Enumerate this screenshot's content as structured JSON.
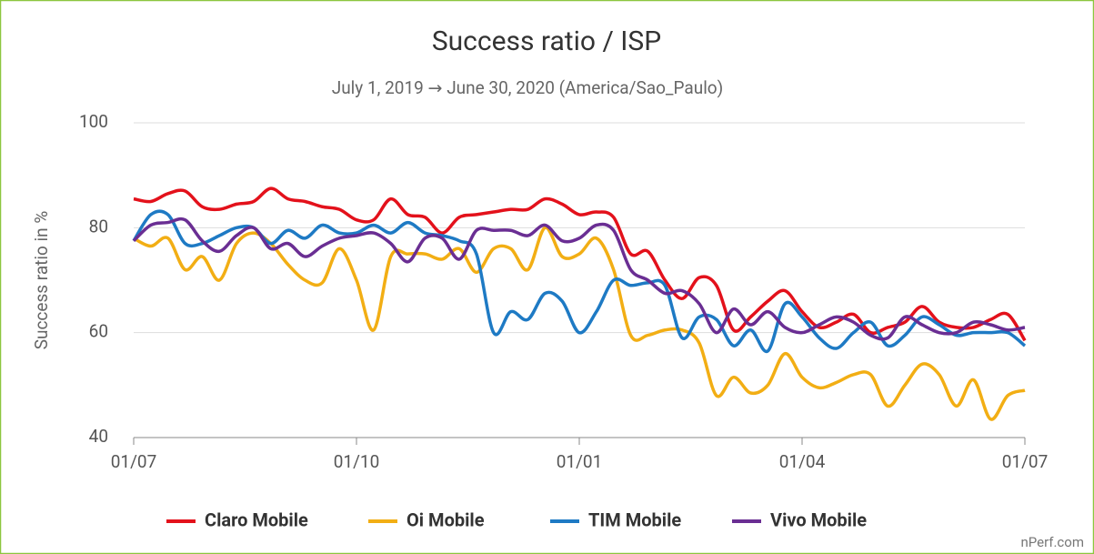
{
  "chart_data": {
    "type": "line",
    "title": "Success ratio / ISP",
    "subtitle": "July 1, 2019 → June 30, 2020 (America/Sao_Paulo)",
    "y_label": "Success ratio in %",
    "source": "nPerf.com",
    "categories": [
      "01/07",
      null,
      null,
      null,
      null,
      null,
      null,
      null,
      null,
      null,
      null,
      null,
      null,
      "01/10",
      null,
      null,
      null,
      null,
      null,
      null,
      null,
      null,
      null,
      null,
      null,
      null,
      "01/01",
      null,
      null,
      null,
      null,
      null,
      null,
      null,
      null,
      null,
      null,
      null,
      null,
      "01/04",
      null,
      null,
      null,
      null,
      null,
      null,
      null,
      null,
      null,
      null,
      null,
      null,
      "01/07"
    ],
    "ylim": [
      40,
      100
    ],
    "yticks": [
      40,
      60,
      80,
      100
    ],
    "grid": true,
    "legend": "bottom",
    "series": [
      {
        "name": "Claro Mobile",
        "color": "#e3111b",
        "values": [
          85.5,
          85,
          86.5,
          87,
          84,
          83.5,
          84.5,
          85,
          87.5,
          85.5,
          85,
          84,
          83.5,
          81.5,
          81.5,
          85.5,
          82.5,
          82,
          79,
          82,
          82.5,
          83,
          83.5,
          83.5,
          85.5,
          84.5,
          82.5,
          83,
          82,
          75,
          75.5,
          70,
          66.5,
          70.5,
          69,
          60.5,
          63,
          66,
          68,
          64,
          61,
          62,
          63.5,
          60,
          61,
          62,
          65,
          62,
          61,
          61,
          62.5,
          63.5,
          58.5
        ]
      },
      {
        "name": "Oi Mobile",
        "color": "#f2ae14",
        "values": [
          78,
          76.5,
          78,
          72,
          74.5,
          70,
          77,
          79,
          77,
          73,
          70,
          69.5,
          76,
          70,
          60.5,
          74.5,
          75,
          75,
          74,
          76,
          71.5,
          76,
          76,
          72,
          80,
          74.5,
          75,
          78,
          72,
          59.5,
          59.5,
          60.5,
          60.5,
          58,
          48,
          51.5,
          48.5,
          50,
          56,
          51.5,
          49.5,
          50.5,
          52,
          52,
          46,
          50,
          54,
          52,
          46,
          51,
          43.5,
          48,
          49
        ]
      },
      {
        "name": "TIM Mobile",
        "color": "#1e7ac4",
        "values": [
          77.5,
          82.5,
          82.5,
          77,
          77,
          78.5,
          80,
          80,
          77,
          79.5,
          78,
          80.5,
          79,
          79,
          80.5,
          79,
          81,
          79,
          78.5,
          77.5,
          75,
          60,
          64,
          62.5,
          67.5,
          66,
          60,
          64,
          70,
          69,
          69.5,
          69,
          59,
          63,
          62.5,
          57.5,
          60.5,
          56.5,
          65.5,
          63,
          59,
          57,
          60,
          62,
          57.5,
          59.5,
          63,
          61.5,
          59.5,
          60,
          60,
          60,
          57.5
        ]
      },
      {
        "name": "Vivo Mobile",
        "color": "#6a2e93",
        "values": [
          77.5,
          80.5,
          81,
          81.5,
          77.5,
          75.5,
          78.5,
          80,
          76,
          77,
          74.5,
          76.5,
          78,
          78.5,
          79,
          77,
          73.5,
          78,
          78,
          74,
          79.5,
          79.5,
          79.5,
          78.5,
          80.5,
          77.5,
          78,
          80.5,
          79.5,
          72,
          70,
          67.5,
          68,
          65.5,
          60,
          64.5,
          61.5,
          64,
          61,
          60,
          61.5,
          63,
          62,
          59.5,
          59,
          63,
          61.5,
          60,
          60,
          62,
          61.5,
          60.5,
          61
        ]
      }
    ]
  }
}
